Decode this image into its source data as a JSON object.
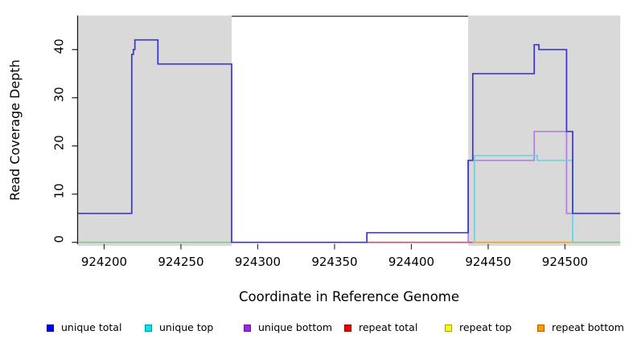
{
  "chart_data": {
    "type": "line",
    "subtype": "step",
    "title": "",
    "xlabel": "Coordinate in Reference Genome",
    "ylabel": "Read Coverage Depth",
    "xlim": [
      924183,
      924536
    ],
    "ylim": [
      0,
      47
    ],
    "x_ticks": [
      924200,
      924250,
      924300,
      924350,
      924400,
      924450,
      924500
    ],
    "y_ticks": [
      0,
      10,
      20,
      30,
      40
    ],
    "grid": false,
    "legend_position": "bottom",
    "shaded_regions": [
      {
        "from": 924183,
        "to": 924283,
        "color": "#D9D9D9"
      },
      {
        "from": 924437,
        "to": 924536,
        "color": "#D9D9D9"
      }
    ],
    "series": [
      {
        "name": "repeat total",
        "color": "#D84A64",
        "steps": [
          [
            924371,
            0
          ],
          [
            924440,
            0
          ]
        ]
      },
      {
        "name": "repeat top",
        "color": "#F5F500",
        "steps": [
          [
            924441,
            0
          ],
          [
            924505,
            0
          ]
        ]
      },
      {
        "name": "repeat bottom",
        "color": "#FF9D1E",
        "steps": [
          [
            924440,
            0
          ],
          [
            924505,
            0
          ]
        ]
      },
      {
        "name": "zero baseline left",
        "color": "#82CC82",
        "steps": [
          [
            924183,
            0
          ],
          [
            924283,
            0
          ]
        ]
      },
      {
        "name": "zero baseline right",
        "color": "#82CC82",
        "steps": [
          [
            924505,
            0
          ],
          [
            924536,
            0
          ]
        ]
      },
      {
        "name": "unique bottom",
        "color": "#B57BDE",
        "steps": [
          [
            924437,
            0
          ],
          [
            924437,
            17
          ],
          [
            924480,
            23
          ],
          [
            924501,
            6
          ],
          [
            924536,
            6
          ]
        ]
      },
      {
        "name": "unique top",
        "color": "#55DCE6",
        "steps": [
          [
            924441,
            0
          ],
          [
            924441,
            18
          ],
          [
            924482,
            17
          ],
          [
            924505,
            0
          ]
        ]
      },
      {
        "name": "unique total",
        "color": "#3533E3",
        "steps": [
          [
            924183,
            6
          ],
          [
            924218,
            39
          ],
          [
            924219,
            40
          ],
          [
            924220,
            42
          ],
          [
            924235,
            37
          ],
          [
            924283,
            0
          ],
          [
            924371,
            2
          ],
          [
            924437,
            17
          ],
          [
            924440,
            35
          ],
          [
            924480,
            41
          ],
          [
            924483,
            40
          ],
          [
            924501,
            23
          ],
          [
            924505,
            6
          ],
          [
            924536,
            6
          ]
        ]
      }
    ]
  },
  "legend": {
    "items": [
      {
        "label": "unique total",
        "color": "#0000EE"
      },
      {
        "label": "unique top",
        "color": "#00E5EE"
      },
      {
        "label": "unique bottom",
        "color": "#A020F0"
      },
      {
        "label": "repeat total",
        "color": "#EE0000"
      },
      {
        "label": "repeat top",
        "color": "#FFFF00"
      },
      {
        "label": "repeat bottom",
        "color": "#FF9900"
      }
    ]
  },
  "colors": {
    "background": "#FFFFFF",
    "panel_shade": "#D9D9D9",
    "frame": "#4D4D4D",
    "axis": "#1A1A1A"
  }
}
